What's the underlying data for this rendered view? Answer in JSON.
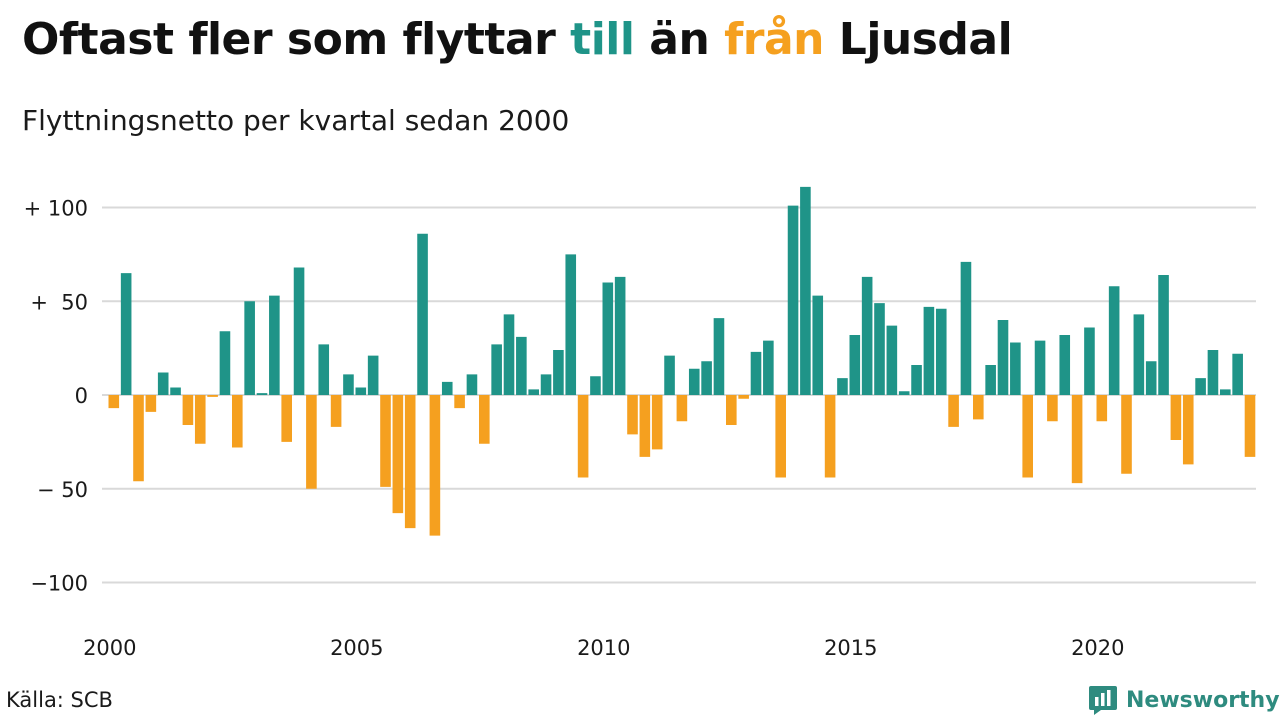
{
  "title": {
    "part1": "Oftast fler som flyttar ",
    "part2": "till",
    "part3": " än ",
    "part4": "från",
    "part5": " Ljusdal"
  },
  "subtitle": "Flyttningsnetto per kvartal sedan 2000",
  "source": "Källa: SCB",
  "brand": "Newsworthy",
  "colors": {
    "positive": "#1f9488",
    "negative": "#f5a01f",
    "title_till": "#1f9488",
    "title_fran": "#f5a01f",
    "grid": "#d9d9d9"
  },
  "chart_data": {
    "type": "bar",
    "x_start": "2000 Q1",
    "ylim": [
      -110,
      115
    ],
    "yticks": [
      {
        "value": 100,
        "label": "+ 100"
      },
      {
        "value": 50,
        "label": "+  50"
      },
      {
        "value": 0,
        "label": "0"
      },
      {
        "value": -50,
        "label": "− 50"
      },
      {
        "value": -100,
        "label": "−100"
      }
    ],
    "xticks": [
      "2000",
      "2005",
      "2010",
      "2015",
      "2020"
    ],
    "grid": true,
    "values": [
      -7,
      65,
      -46,
      -9,
      12,
      4,
      -16,
      -26,
      -1,
      34,
      -28,
      50,
      1,
      53,
      -25,
      68,
      -50,
      27,
      -17,
      11,
      4,
      21,
      -49,
      -63,
      -71,
      86,
      -75,
      7,
      -7,
      11,
      -26,
      27,
      43,
      31,
      3,
      11,
      24,
      75,
      -44,
      10,
      60,
      63,
      -21,
      -33,
      -29,
      21,
      -14,
      14,
      18,
      41,
      -16,
      -2,
      23,
      29,
      -44,
      101,
      111,
      53,
      -44,
      9,
      32,
      63,
      49,
      37,
      2,
      16,
      47,
      46,
      -17,
      71,
      -13,
      16,
      40,
      28,
      -44,
      29,
      -14,
      32,
      -47,
      36,
      -14,
      58,
      -42,
      43,
      18,
      64,
      -24,
      -37,
      9,
      24,
      3,
      22,
      -33
    ]
  }
}
